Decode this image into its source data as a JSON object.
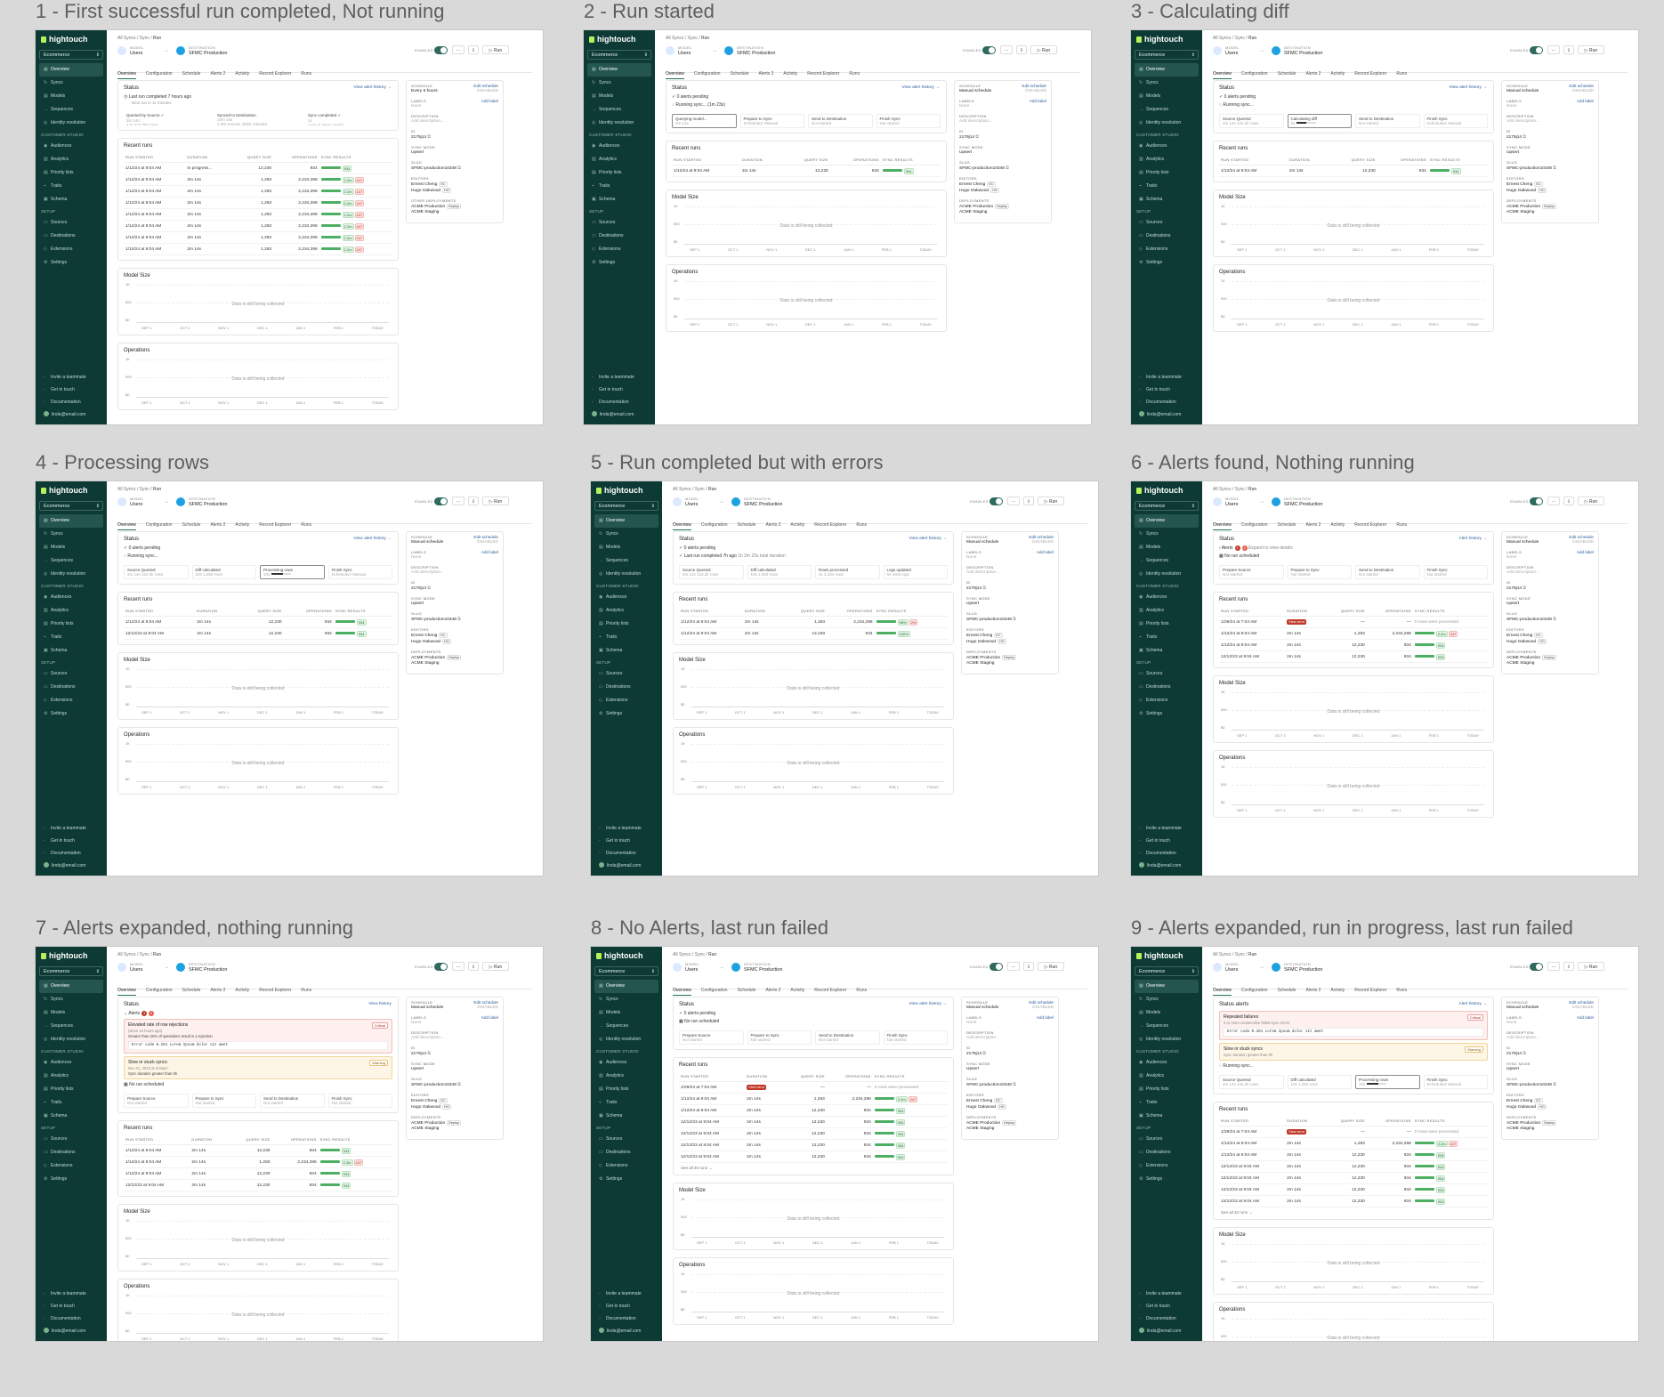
{
  "panels": [
    {
      "caption": "1 - First successful run completed, Not running"
    },
    {
      "caption": "2 - Run started"
    },
    {
      "caption": "3 - Calculating diff"
    },
    {
      "caption": "4 - Processing rows"
    },
    {
      "caption": "5 - Run completed but with errors"
    },
    {
      "caption": "6 - Alerts found, Nothing running"
    },
    {
      "caption": "7 - Alerts expanded, nothing running"
    },
    {
      "caption": "8 - No Alerts, last run failed"
    },
    {
      "caption": "9 - Alerts expanded, run in progress, last run failed"
    }
  ],
  "app": {
    "brand": "hightouch",
    "workspace": "Ecommerce",
    "nav": [
      "Overview",
      "Syncs",
      "Models",
      "Sequences",
      "Identity resolution"
    ],
    "section_customer_studio": "CUSTOMER STUDIO",
    "nav_cs": [
      "Audiences",
      "Analytics",
      "Priority lists",
      "Traits",
      "Schema"
    ],
    "section_setup": "SETUP",
    "nav_setup": [
      "Sources",
      "Destinations",
      "Extensions",
      "Settings"
    ],
    "bottom": [
      "Invite a teammate",
      "Get in touch",
      "Documentation"
    ],
    "user": "linda@email.com",
    "icons": {
      "nav": [
        "grid-icon",
        "sync-icon",
        "model-icon",
        "sequence-icon",
        "identity-icon",
        "audience-icon",
        "chart-icon",
        "list-icon",
        "trait-icon",
        "schema-icon",
        "source-icon",
        "destination-icon",
        "extension-icon",
        "settings-icon"
      ]
    }
  },
  "header": {
    "breadcrumb": [
      "All Syncs",
      "Sync",
      "Run"
    ],
    "model_label": "MODEL",
    "model_name": "Users",
    "dest_label": "DESTINATION",
    "dest_name": "SFMC Production",
    "enabled_label": "ENABLED",
    "more": "···",
    "run": "Run",
    "tabs": [
      "Overview",
      "Configuration",
      "Schedule",
      "Alerts  2",
      "Activity",
      "Record Explorer",
      "Runs"
    ]
  },
  "cards": {
    "status": "Status",
    "status_alerts": "Status alerts",
    "view_alert_history": "View alert history →",
    "alert_history": "Alert history →",
    "recent_runs": "Recent runs",
    "run_cols": [
      "RUN STARTED",
      "DURATION",
      "QUERY SIZE",
      "OPERATIONS",
      "SYNC RESULTS"
    ],
    "model_size": "Model Size",
    "operations": "Operations",
    "collecting": "Data is still being collected",
    "y_ticks": [
      "1K",
      "500",
      "$0"
    ],
    "x_ticks": [
      "SEP 1",
      "OCT 1",
      "NOV 1",
      "DEC 1",
      "JAN 1",
      "FEB 1",
      "TODAY"
    ],
    "see_all": "See all 40 runs →"
  },
  "right": {
    "schedule": "SCHEDULE",
    "edit_schedule": "Edit schedule",
    "schedule_val_1": "Every 6 hours",
    "schedule_val": "Manual schedule",
    "disabled": "DISABLED",
    "labels": "LABELS",
    "add_label": "Add label",
    "labels_val": "None",
    "description": "DESCRIPTION",
    "description_val": "Add description...",
    "id": "ID",
    "id_val": "2179j14",
    "sync_mode": "SYNC MODE",
    "sync_mode_val": "Upsert",
    "slug": "SLUG",
    "slug_val": "SFMC-production10348",
    "editors": "EDITORS",
    "editor_1": "Ernest Cheng",
    "editor_1_i": "EC",
    "editor_2": "Hugo Oakwood",
    "editor_2_i": "HO",
    "deployments": "DEPLOYMENTS",
    "other_deployments": "OTHER DEPLOYMENTS",
    "dep_1": "ACME Production",
    "deploy": "Deploy",
    "dep_2": "ACME Staging"
  },
  "p1": {
    "last_run": "Last run completed 7 hours ago",
    "next_run": "Next run in 11 minutes",
    "stages": [
      {
        "a": "Queried by Source ✓",
        "b": "2m 14s",
        "c": "443,223,387 rows"
      },
      {
        "a": "Synced to Destination",
        "b": "10m 43s",
        "c": "1.2M synced, 302K rejected"
      },
      {
        "a": "Sync completed ✓",
        "b": "1s",
        "c": "Logs & alerts saved"
      }
    ],
    "runs": [
      [
        "1/12/24 at 9:04 AM",
        "In progress...",
        "12,230",
        "934",
        "934",
        ""
      ],
      [
        "1/12/24 at 9:04 AM",
        "2m 14s",
        "1,283",
        "2,234,298",
        "2.2m",
        "247"
      ],
      [
        "1/12/24 at 9:04 AM",
        "2m 14s",
        "1,283",
        "2,234,298",
        "2.2m",
        "247"
      ],
      [
        "1/12/24 at 9:04 AM",
        "2m 14s",
        "1,283",
        "2,234,298",
        "2.2m",
        "247"
      ],
      [
        "1/12/24 at 9:04 AM",
        "2m 14s",
        "1,283",
        "2,234,298",
        "2.2m",
        "247"
      ],
      [
        "1/12/24 at 9:04 AM",
        "2m 14s",
        "1,283",
        "2,234,298",
        "2.2m",
        "247"
      ],
      [
        "1/12/24 at 9:04 AM",
        "2m 14s",
        "1,283",
        "2,234,298",
        "2.2m",
        "247"
      ],
      [
        "1/12/24 at 9:04 AM",
        "2m 14s",
        "1,283",
        "2,234,298",
        "2.2m",
        "247"
      ]
    ]
  },
  "common": {
    "no_alerts": "0 alerts pending",
    "running": "Running sync... (1m 23s)",
    "running_short": "Running sync...",
    "no_run": "No run scheduled",
    "last_completed": "Last run completed 7h ago",
    "last_completed_sub": "1h 2m 23s total duration",
    "stage_names": [
      "Querying model...",
      "Prepare to Sync",
      "Send to Destination",
      "Finish Sync"
    ],
    "stage_source": "Source Queried",
    "stage_diff": "Calculating diff",
    "stage_diff_done": "Diff calculated",
    "stage_rows": "Processing rows",
    "stage_rows_done": "Rows processed",
    "stage_logs": "Logs updated",
    "stage_finish": "Finish Sync",
    "prepare_source": "Prepare Source",
    "prepare_sync": "Prepare to Sync",
    "send_dest": "Send to Destination",
    "not_started": "Not started",
    "sched_manual": "Scheduled: Manual",
    "v_time": "2m 14s",
    "v_rows": "124.2k rows",
    "v_diff": "1,283 rows",
    "v_ops": "2,234 rows",
    "v_view": "View logs",
    "v_10s": "10s",
    "v_5s": "5s",
    "v_4s": "4s",
    "run_row_a": [
      "1/12/24 at 9:04 AM",
      "2m 14s",
      "12,230",
      "934",
      "934"
    ],
    "run_row_b": [
      "12/12/23 at 9:04 AM",
      "2m 14s",
      "12,230",
      "934",
      "934"
    ],
    "run_row_fail": [
      "1/29/24 at 7:04 AM",
      "View error",
      "—",
      "—",
      "0 rows were processed"
    ],
    "run_row_err": [
      "1/12/24 at 9:04 AM",
      "2m 14s",
      "1,283",
      "2,234,298",
      "98%",
      "2%"
    ],
    "run_row_ok": [
      "1/12/24 at 9:04 AM",
      "2m 14s",
      "12,230",
      "934",
      "100%"
    ],
    "run_row_mix": [
      "1/12/24 at 9:04 AM",
      "2m 14s",
      "1,283",
      "2,234,298",
      "2.2m",
      "247"
    ],
    "alerts_label": "Alerts",
    "alerts_hint": "Expand to view details",
    "alert_settings": "Alert settings",
    "view_history": "View history",
    "alert1_title": "Elevated rate of row rejections",
    "alert1_date": "(since 14 hours ago)",
    "alert1_desc": "Greater than 20% of operations result in a rejection",
    "alert1_code": "Error code 0.201 Lorem Ipsum dolor sit amet",
    "critical": "Critical",
    "alert2_title": "Slow or stuck syncs",
    "alert2_date": "Dec 01, 2023 at 5:02pm",
    "alert2_desc": "Sync duration greater than 6h",
    "warning": "Warning",
    "rep_title": "Repeated failures",
    "rep_desc": "3 or more consecutive failed sync errors",
    "slow_desc": "Sync duration greater than 6h"
  }
}
